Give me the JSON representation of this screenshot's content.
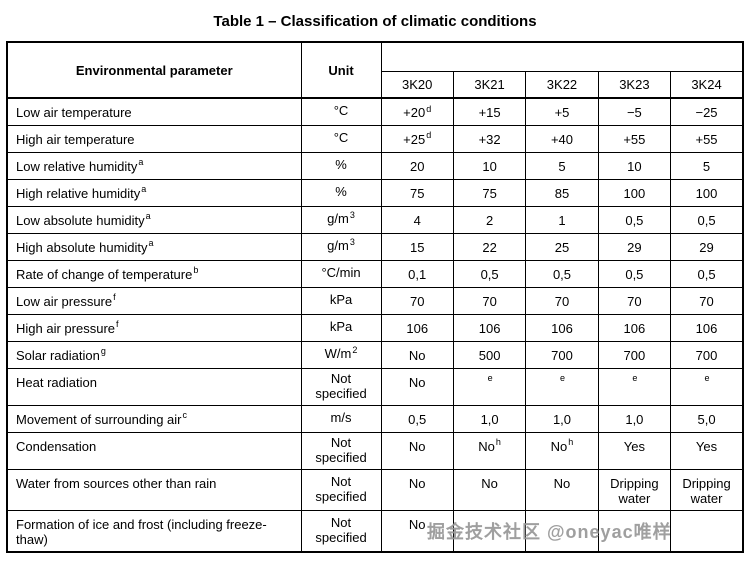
{
  "title": "Table 1 – Classification of climatic conditions",
  "watermark": "掘金技术社区 @oneyac唯样",
  "table": {
    "header": {
      "param": "Environmental parameter",
      "unit": "Unit",
      "classes": [
        "3K20",
        "3K21",
        "3K22",
        "3K23",
        "3K24"
      ]
    },
    "rows": [
      {
        "param": {
          "t": "Low air temperature"
        },
        "unit": {
          "t": "°C"
        },
        "values": [
          {
            "t": "+20",
            "sup": "d"
          },
          {
            "t": "+15"
          },
          {
            "t": "+5"
          },
          {
            "t": "−5"
          },
          {
            "t": "−25"
          }
        ]
      },
      {
        "param": {
          "t": "High air temperature"
        },
        "unit": {
          "t": "°C"
        },
        "values": [
          {
            "t": "+25",
            "sup": "d"
          },
          {
            "t": "+32"
          },
          {
            "t": "+40"
          },
          {
            "t": "+55"
          },
          {
            "t": "+55"
          }
        ]
      },
      {
        "param": {
          "t": "Low relative humidity",
          "sup": "a"
        },
        "unit": {
          "t": "%"
        },
        "values": [
          {
            "t": "20"
          },
          {
            "t": "10"
          },
          {
            "t": "5"
          },
          {
            "t": "10"
          },
          {
            "t": "5"
          }
        ]
      },
      {
        "param": {
          "t": "High relative humidity",
          "sup": "a"
        },
        "unit": {
          "t": "%"
        },
        "values": [
          {
            "t": "75"
          },
          {
            "t": "75"
          },
          {
            "t": "85"
          },
          {
            "t": "100"
          },
          {
            "t": "100"
          }
        ]
      },
      {
        "param": {
          "t": "Low absolute humidity",
          "sup": "a"
        },
        "unit": {
          "t": "g/m",
          "sup": "3"
        },
        "values": [
          {
            "t": "4"
          },
          {
            "t": "2"
          },
          {
            "t": "1"
          },
          {
            "t": "0,5"
          },
          {
            "t": "0,5"
          }
        ]
      },
      {
        "param": {
          "t": "High absolute humidity",
          "sup": "a"
        },
        "unit": {
          "t": "g/m",
          "sup": "3"
        },
        "values": [
          {
            "t": "15"
          },
          {
            "t": "22"
          },
          {
            "t": "25"
          },
          {
            "t": "29"
          },
          {
            "t": "29"
          }
        ]
      },
      {
        "param": {
          "t": "Rate of change of temperature",
          "sup": "b"
        },
        "unit": {
          "t": "°C/min"
        },
        "values": [
          {
            "t": "0,1"
          },
          {
            "t": "0,5"
          },
          {
            "t": "0,5"
          },
          {
            "t": "0,5"
          },
          {
            "t": "0,5"
          }
        ]
      },
      {
        "param": {
          "t": "Low air pressure",
          "sup": "f"
        },
        "unit": {
          "t": "kPa"
        },
        "values": [
          {
            "t": "70"
          },
          {
            "t": "70"
          },
          {
            "t": "70"
          },
          {
            "t": "70"
          },
          {
            "t": "70"
          }
        ]
      },
      {
        "param": {
          "t": "High air pressure",
          "sup": "f"
        },
        "unit": {
          "t": "kPa"
        },
        "values": [
          {
            "t": "106"
          },
          {
            "t": "106"
          },
          {
            "t": "106"
          },
          {
            "t": "106"
          },
          {
            "t": "106"
          }
        ]
      },
      {
        "param": {
          "t": "Solar radiation",
          "sup": "g"
        },
        "unit": {
          "t": "W/m",
          "sup": "2"
        },
        "values": [
          {
            "t": "No"
          },
          {
            "t": "500"
          },
          {
            "t": "700"
          },
          {
            "t": "700"
          },
          {
            "t": "700"
          }
        ]
      },
      {
        "param": {
          "t": "Heat radiation"
        },
        "unit": {
          "t": "Not specified"
        },
        "values": [
          {
            "t": "No"
          },
          {
            "sup": "e"
          },
          {
            "sup": "e"
          },
          {
            "sup": "e"
          },
          {
            "sup": "e"
          }
        ]
      },
      {
        "param": {
          "t": "Movement of surrounding air",
          "sup": "c"
        },
        "unit": {
          "t": "m/s"
        },
        "values": [
          {
            "t": "0,5"
          },
          {
            "t": "1,0"
          },
          {
            "t": "1,0"
          },
          {
            "t": "1,0"
          },
          {
            "t": "5,0"
          }
        ]
      },
      {
        "param": {
          "t": "Condensation"
        },
        "unit": {
          "t": "Not specified"
        },
        "values": [
          {
            "t": "No"
          },
          {
            "t": "No",
            "sup": "h"
          },
          {
            "t": "No",
            "sup": "h"
          },
          {
            "t": "Yes"
          },
          {
            "t": "Yes"
          }
        ]
      },
      {
        "param": {
          "t": "Water from sources other than rain"
        },
        "unit": {
          "t": "Not specified"
        },
        "values": [
          {
            "t": "No"
          },
          {
            "t": "No"
          },
          {
            "t": "No"
          },
          {
            "t": "Dripping water"
          },
          {
            "t": "Dripping water"
          }
        ]
      },
      {
        "param": {
          "t": "Formation of ice and frost (including freeze-thaw)"
        },
        "unit": {
          "t": "Not specified"
        },
        "values": [
          {
            "t": "No"
          },
          {
            "t": ""
          },
          {
            "t": ""
          },
          {
            "t": ""
          },
          {
            "t": ""
          }
        ]
      }
    ]
  }
}
